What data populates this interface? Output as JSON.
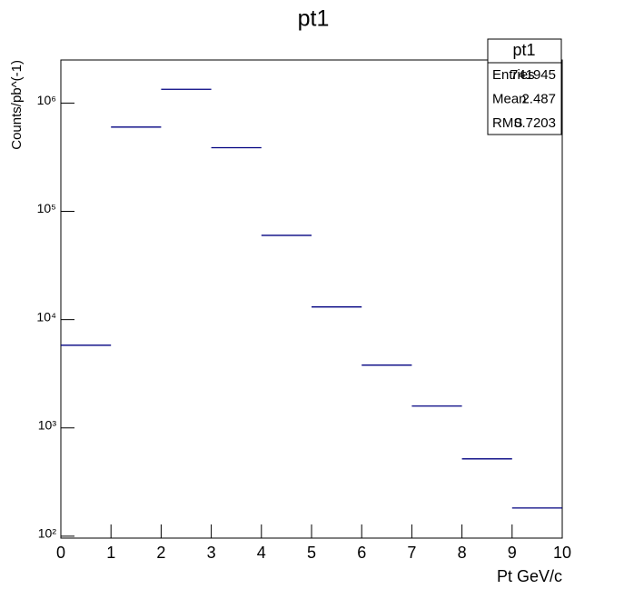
{
  "chart_data": {
    "type": "histogram",
    "title": "pt1",
    "x_label": "Pt GeV/c",
    "y_label": "Counts/pb^(-1)",
    "bins": [
      0,
      1,
      2,
      3,
      4,
      5,
      6,
      7,
      8,
      9,
      10
    ],
    "counts": [
      5800,
      600000,
      1340000,
      387000,
      60000,
      13100,
      3800,
      1590,
      518,
      182
    ],
    "color": "#000080",
    "xlim": [
      0,
      10
    ],
    "xticks": [
      0,
      1,
      2,
      3,
      4,
      5,
      6,
      7,
      8,
      9,
      10
    ],
    "ylim": [
      96,
      2500000
    ],
    "log_y": true,
    "yticks": [
      {
        "value": 100,
        "label": "10²"
      },
      {
        "value": 1000,
        "label": "10³"
      },
      {
        "value": 10000,
        "label": "10⁴"
      },
      {
        "value": 100000,
        "label": "10⁵"
      },
      {
        "value": 1000000,
        "label": "10⁶"
      }
    ],
    "stats": {
      "title": "pt1",
      "rows": [
        {
          "label": "Entries",
          "value": 741945
        },
        {
          "label": "Mean",
          "value": 2.487
        },
        {
          "label": "RMS",
          "value": 0.7203
        }
      ]
    }
  }
}
